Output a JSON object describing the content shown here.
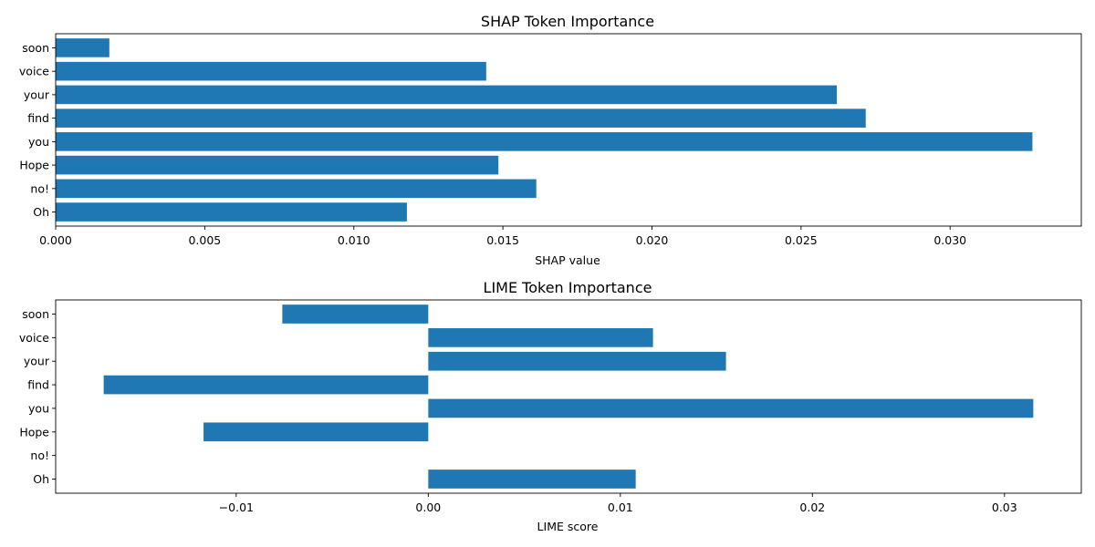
{
  "chart_data": [
    {
      "type": "bar",
      "orientation": "horizontal",
      "title": "SHAP Token Importance",
      "xlabel": "SHAP value",
      "ylabel": "",
      "categories": [
        "Oh",
        "no!",
        "Hope",
        "you",
        "find",
        "your",
        "voice",
        "soon"
      ],
      "values": [
        0.01178,
        0.01612,
        0.01485,
        0.03276,
        0.02717,
        0.0262,
        0.01444,
        0.0018
      ],
      "xlim": [
        0.0,
        0.0344
      ],
      "xticks": [
        0.0,
        0.005,
        0.01,
        0.015,
        0.02,
        0.025,
        0.03
      ],
      "xtick_labels": [
        "0.000",
        "0.005",
        "0.010",
        "0.015",
        "0.020",
        "0.025",
        "0.030"
      ],
      "color": "#1f77b4",
      "grid": false
    },
    {
      "type": "bar",
      "orientation": "horizontal",
      "title": "LIME Token Importance",
      "xlabel": "LIME score",
      "ylabel": "",
      "categories": [
        "Oh",
        "no!",
        "Hope",
        "you",
        "find",
        "your",
        "voice",
        "soon"
      ],
      "values": [
        0.0108,
        0.0,
        -0.0117,
        0.0315,
        -0.0169,
        0.0155,
        0.0117,
        -0.0076
      ],
      "xlim": [
        -0.0194,
        0.034
      ],
      "xticks": [
        -0.01,
        0.0,
        0.01,
        0.02,
        0.03
      ],
      "xtick_labels": [
        "−0.01",
        "0.00",
        "0.01",
        "0.02",
        "0.03"
      ],
      "color": "#1f77b4",
      "grid": false
    }
  ]
}
